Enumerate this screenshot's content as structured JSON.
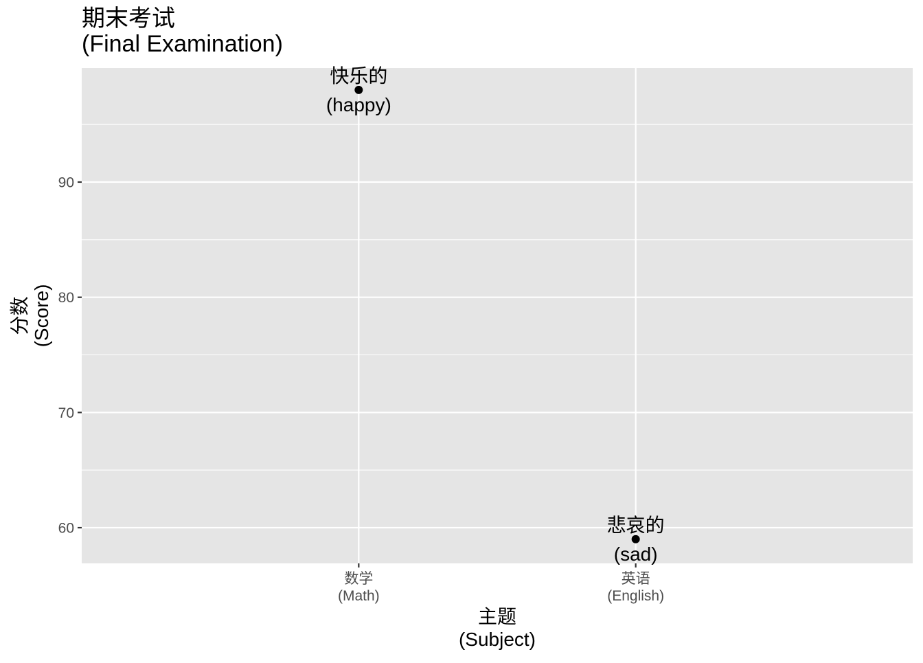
{
  "chart_data": {
    "type": "scatter",
    "title": [
      "期末考试",
      "(Final Examination)"
    ],
    "xlabel": [
      "主题",
      "(Subject)"
    ],
    "ylabel": [
      "分数",
      "(Score)"
    ],
    "categories": [
      [
        "数学",
        "(Math)"
      ],
      [
        "英语",
        "(English)"
      ]
    ],
    "points": [
      {
        "x": 0,
        "y": 98,
        "label": [
          "快乐的",
          "(happy)"
        ]
      },
      {
        "x": 1,
        "y": 59,
        "label": [
          "悲哀的",
          "(sad)"
        ]
      }
    ],
    "ylim": [
      56.9,
      99.9
    ],
    "yticks": [
      60,
      70,
      80,
      90
    ],
    "grid": true,
    "legend": "none",
    "colors": {
      "panel": "#e5e5e5",
      "grid_major": "#ffffff",
      "point": "#000000",
      "tick_text": "#4d4d4d"
    }
  }
}
